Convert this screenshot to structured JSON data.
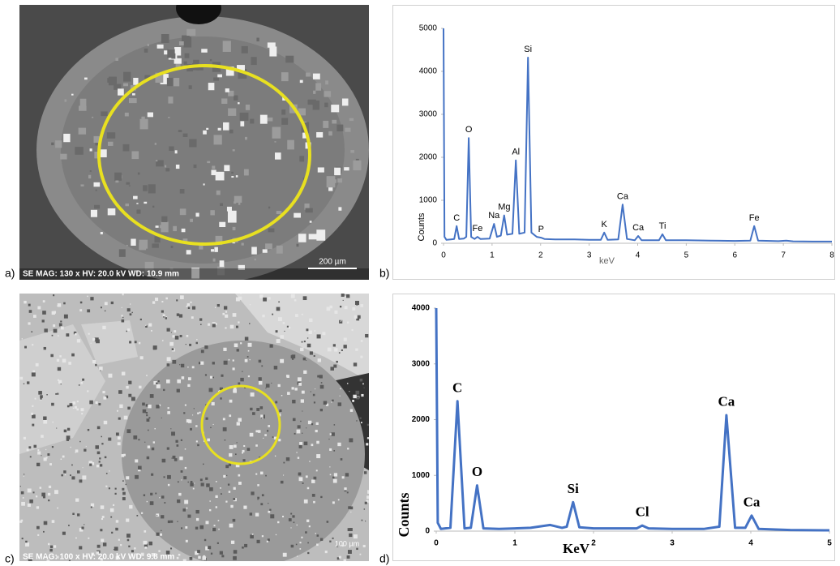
{
  "panels": [
    {
      "label": "a)",
      "info": "SE  MAG: 130 x  HV: 20.0 kV  WD: 10.9 mm",
      "scale": "200 µm"
    },
    {
      "label": "b)"
    },
    {
      "label": "c)",
      "info": "SE  MAG: 100 x  HV: 20.0 kV  WD: 9.8 mm",
      "scale": "100 µm"
    },
    {
      "label": "d)"
    }
  ],
  "chart_data": [
    {
      "type": "line",
      "x_label": "keV",
      "y_label": "Counts",
      "x": [
        0,
        0.02,
        0.06,
        0.15,
        0.22,
        0.27,
        0.32,
        0.42,
        0.47,
        0.52,
        0.57,
        0.64,
        0.7,
        0.76,
        0.95,
        1.04,
        1.1,
        1.18,
        1.25,
        1.31,
        1.42,
        1.49,
        1.56,
        1.67,
        1.74,
        1.81,
        1.92,
        2.01,
        2.08,
        2.3,
        2.7,
        3.0,
        3.24,
        3.31,
        3.38,
        3.6,
        3.69,
        3.78,
        3.94,
        4.01,
        4.08,
        4.44,
        4.51,
        4.58,
        5.0,
        5.5,
        6.0,
        6.32,
        6.4,
        6.48,
        6.9,
        7.06,
        7.2,
        7.6,
        8
      ],
      "values": [
        5000,
        150,
        80,
        90,
        100,
        400,
        100,
        110,
        150,
        2450,
        150,
        100,
        150,
        100,
        110,
        450,
        150,
        180,
        650,
        200,
        220,
        1930,
        220,
        250,
        4320,
        250,
        150,
        130,
        100,
        90,
        90,
        80,
        80,
        250,
        80,
        90,
        900,
        100,
        70,
        170,
        70,
        70,
        210,
        70,
        70,
        60,
        55,
        60,
        400,
        60,
        50,
        60,
        45,
        40,
        40
      ],
      "color": "#4472c4",
      "xlim": [
        0,
        8
      ],
      "xticks": [
        0,
        1,
        2,
        3,
        4,
        5,
        6,
        7,
        8
      ],
      "ylim": [
        0,
        5000
      ],
      "yticks": [
        0,
        1000,
        2000,
        3000,
        4000,
        5000
      ],
      "annotations": [
        {
          "text": "C",
          "x": 0.27
        },
        {
          "text": "O",
          "x": 0.52
        },
        {
          "text": "Fe",
          "x": 0.7
        },
        {
          "text": "Na",
          "x": 1.04
        },
        {
          "text": "Mg",
          "x": 1.25
        },
        {
          "text": "Al",
          "x": 1.49
        },
        {
          "text": "Si",
          "x": 1.74
        },
        {
          "text": "P",
          "x": 2.01
        },
        {
          "text": "K",
          "x": 3.31
        },
        {
          "text": "Ca",
          "x": 3.69
        },
        {
          "text": "Ca",
          "x": 4.01
        },
        {
          "text": "Ti",
          "x": 4.51
        },
        {
          "text": "Fe",
          "x": 6.4
        }
      ]
    },
    {
      "type": "line",
      "x_label": "KeV",
      "y_label": "Counts",
      "x": [
        0,
        0.02,
        0.06,
        0.18,
        0.27,
        0.36,
        0.44,
        0.52,
        0.6,
        0.8,
        1.2,
        1.45,
        1.6,
        1.66,
        1.74,
        1.82,
        2.0,
        2.4,
        2.55,
        2.62,
        2.7,
        3.0,
        3.4,
        3.6,
        3.69,
        3.8,
        3.93,
        4.01,
        4.1,
        4.5,
        5
      ],
      "values": [
        4000,
        150,
        40,
        60,
        2330,
        50,
        60,
        820,
        50,
        40,
        60,
        110,
        60,
        80,
        520,
        70,
        50,
        50,
        50,
        100,
        50,
        40,
        40,
        80,
        2080,
        60,
        60,
        280,
        40,
        20,
        15
      ],
      "color": "#4472c4",
      "xlim": [
        0,
        5
      ],
      "xticks": [
        0,
        1,
        2,
        3,
        4,
        5
      ],
      "ylim": [
        0,
        4000
      ],
      "yticks": [
        0,
        1000,
        2000,
        3000,
        4000
      ],
      "annotations": [
        {
          "text": "C",
          "x": 0.27
        },
        {
          "text": "O",
          "x": 0.52
        },
        {
          "text": "Si",
          "x": 1.74
        },
        {
          "text": "Cl",
          "x": 2.62
        },
        {
          "text": "Ca",
          "x": 3.69
        },
        {
          "text": "Ca",
          "x": 4.01
        }
      ]
    }
  ]
}
